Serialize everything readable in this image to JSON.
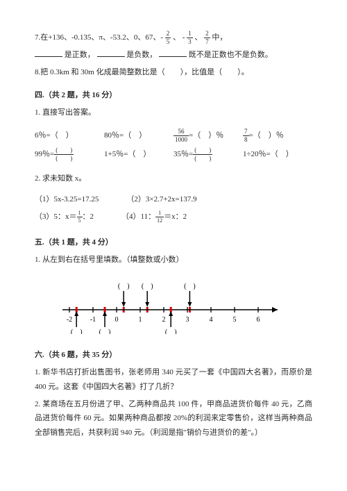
{
  "q7": {
    "prefix": "7.在+136、-0.135、π、-53.2、0、67、-",
    "frac1_n": "2",
    "frac1_d": "5",
    "mid1": "、 -",
    "frac2_n": "1",
    "frac2_d": "3",
    "mid2": "、",
    "frac3_n": "2",
    "frac3_d": "7",
    "suffix": "中，",
    "line2a": "是正数，",
    "line2b": "是负数，",
    "line2c": "既不是正数也不是负数。"
  },
  "q8": "8.把 0.3km 和 30m 化成最简整数比是（　　），比值是（　　）。",
  "sec4": "四.（共 2 题，共 16 分）",
  "s4q1": "1. 直接写出答案。",
  "s4row1": {
    "a": "6％=（　）",
    "b": "80％=（　）",
    "c_pre": "",
    "c_n": "56",
    "c_d": "1000",
    "c_post": "=（　）％",
    "d_pre": "",
    "d_n": "7",
    "d_d": "8",
    "d_post": "=（　）％"
  },
  "s4row2": {
    "a_pre": "99％=",
    "a_n": "(　　)",
    "a_d": "(　　)",
    "b": "1+5％=（　）",
    "c_pre": "35％=",
    "c_n": "(　　)",
    "c_d": "(　　)",
    "d": "1÷20％=（　）"
  },
  "s4q2": "2. 求未知数 x。",
  "eq1": "（1）5x-3.25=17.25",
  "eq2": "（2）3×2.7+2x=137.9",
  "eq3_pre": "（3）5：x＝",
  "eq3_n": "1",
  "eq3_d": "5",
  "eq3_post": "：2",
  "eq4_pre": "（4）11：",
  "eq4_n": "1",
  "eq4_d": "12",
  "eq4_post": "＝x：2",
  "sec5": "五.（共 1 题，共 4 分）",
  "s5q1": "1. 从左到右在括号里填数。（填整数或小数）",
  "numberline": {
    "ticks": [
      -2,
      -1,
      0,
      1,
      2,
      3,
      4,
      5,
      6
    ],
    "arrows_up": [
      0.3,
      1.3,
      3.1
    ],
    "arrows_down": [
      -1.7,
      -0.5,
      2.3
    ]
  },
  "sec6": "六.（共 6 题，共 35 分）",
  "s6q1": "1. 新华书店打折出售图书，张老师用 340 元买了一套《中国四大名著》，而原价是 400 元。这套《中国四大名著》打了几折？",
  "s6q2": "2. 某商场在五月份进了甲、乙两种商品共 100 件，甲商品进货价每件 40 元，乙商品进货价每件 60 元。如果两种商品都按 20%的利润来定零售价，这样当两种商品全部销售完后，共获利润 940 元。（利润是指\"销价与进货价的差\"。）"
}
